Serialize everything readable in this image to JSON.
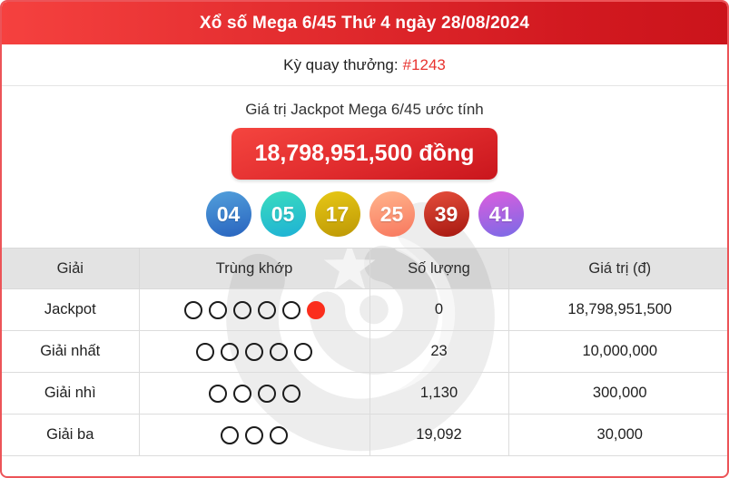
{
  "header": {
    "title": "Xổ số Mega 6/45 Thứ 4 ngày 28/08/2024"
  },
  "draw": {
    "label": "Kỳ quay thưởng:",
    "id": "#1243"
  },
  "jackpot": {
    "caption": "Giá trị Jackpot Mega 6/45 ước tính",
    "amount": "18,798,951,500 đồng"
  },
  "balls": [
    {
      "number": "04",
      "color_top": "#4f9bd9",
      "color_bottom": "#2a66c0"
    },
    {
      "number": "05",
      "color_top": "#38d9c0",
      "color_bottom": "#1fb3d4"
    },
    {
      "number": "17",
      "color_top": "#e4c414",
      "color_bottom": "#bf9a06"
    },
    {
      "number": "25",
      "color_top": "#ffb089",
      "color_bottom": "#f87a60"
    },
    {
      "number": "39",
      "color_top": "#e04a38",
      "color_bottom": "#a91a12"
    },
    {
      "number": "41",
      "color_top": "#d55ede",
      "color_bottom": "#7e6ae6"
    }
  ],
  "table": {
    "headers": [
      "Giải",
      "Trùng khớp",
      "Số lượng",
      "Giá trị (đ)"
    ],
    "rows": [
      {
        "name": "Jackpot",
        "match_open": 5,
        "match_filled": 1,
        "count": "0",
        "value": "18,798,951,500",
        "value_red": true
      },
      {
        "name": "Giải nhất",
        "match_open": 5,
        "match_filled": 0,
        "count": "23",
        "value": "10,000,000",
        "value_red": false
      },
      {
        "name": "Giải nhì",
        "match_open": 4,
        "match_filled": 0,
        "count": "1,130",
        "value": "300,000",
        "value_red": false
      },
      {
        "name": "Giải ba",
        "match_open": 3,
        "match_filled": 0,
        "count": "19,092",
        "value": "30,000",
        "value_red": false
      }
    ]
  },
  "colors": {
    "header_gradient_left": "#f5413f",
    "header_gradient_right": "#cb141b",
    "container_border": "#ec5458",
    "draw_id_red": "#e8332f",
    "jackpot_value_red": "#ef423c",
    "matched_ball_red": "#fb2e1d",
    "table_header_bg": "#e3e3e3"
  }
}
